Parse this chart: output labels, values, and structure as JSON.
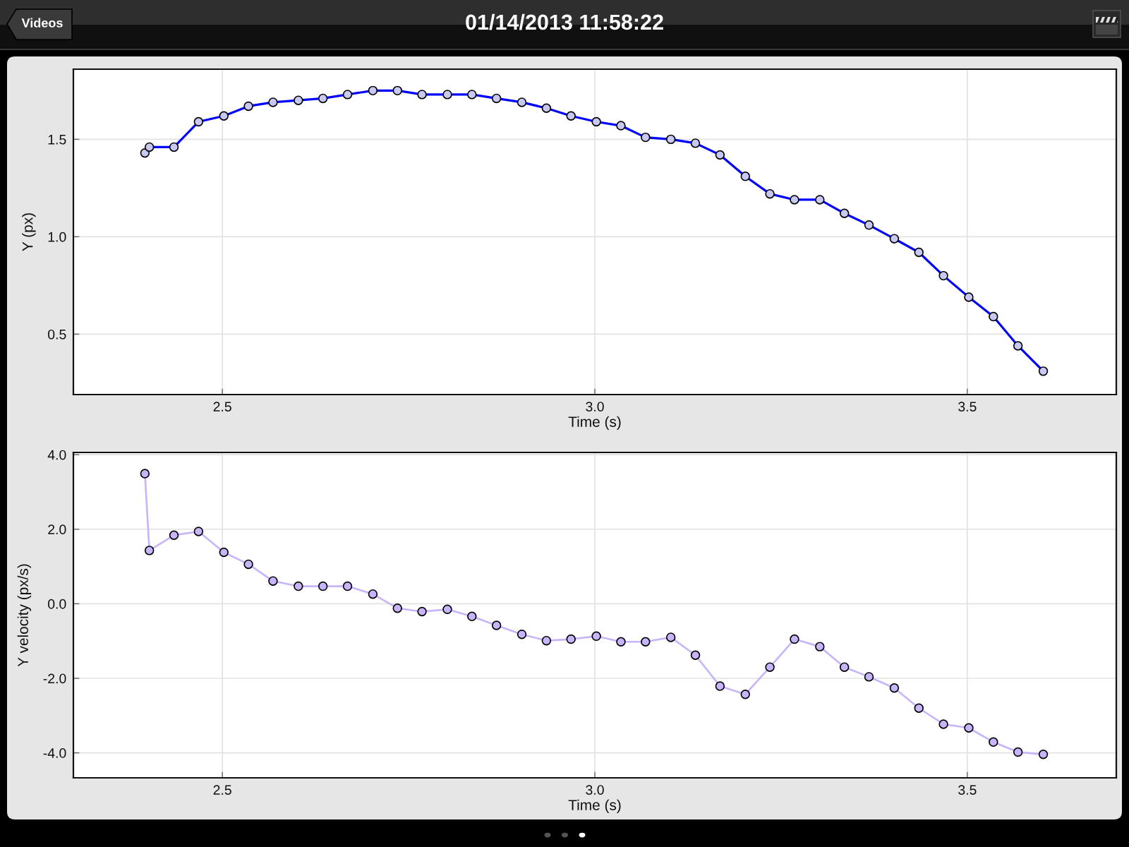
{
  "chart_data": [
    {
      "type": "line",
      "title": "01/14/2013 11:58:22",
      "annotations": [
        "Videos"
      ],
      "xlabel": "Time (s)",
      "ylabel": "Y (px)",
      "x": [
        2.396,
        2.402,
        2.435,
        2.468,
        2.502,
        2.535,
        2.568,
        2.602,
        2.635,
        2.668,
        2.702,
        2.735,
        2.768,
        2.802,
        2.835,
        2.868,
        2.902,
        2.935,
        2.968,
        3.002,
        3.035,
        3.068,
        3.102,
        3.135,
        3.168,
        3.202,
        3.235,
        3.268,
        3.302,
        3.335,
        3.368,
        3.402,
        3.435,
        3.468,
        3.502,
        3.535,
        3.568,
        3.602
      ],
      "series": [
        {
          "color": "#0000ff",
          "colors": [
            "#c8c8f4",
            "#c8c8f4",
            "#c8c8f4",
            "#c8c8f4",
            "#c8c8f4",
            "#c8c8f4",
            "#c8c8f4",
            "#c8c8f4",
            "#c8c8f4",
            "#c8c8f4",
            "#c8c8f4",
            "#c8c8f4",
            "#c8c8f4",
            "#c8c8f4",
            "#c8c8f4",
            "#c8c8f4",
            "#c8c8f4",
            "#c8c8f4",
            "#c8c8f4",
            "#c8c8f4",
            "#c8c8f4",
            "#c8c8f4",
            "#c8c8f4",
            "#c8c8f4",
            "#c8c8f4",
            "#c8c8f4",
            "#c8c8f4",
            "#c8c8f4",
            "#c8c8f4",
            "#c8c8f4",
            "#c8c8f4",
            "#c8c8f4",
            "#c8c8f4",
            "#c8c8f4",
            "#c8c8f4",
            "#c8c8f4",
            "#c8c8f4",
            "#c8c8f4"
          ],
          "values": [
            1.43,
            1.46,
            1.46,
            1.59,
            1.62,
            1.67,
            1.69,
            1.7,
            1.71,
            1.73,
            1.75,
            1.75,
            1.73,
            1.73,
            1.73,
            1.71,
            1.69,
            1.66,
            1.62,
            1.59,
            1.57,
            1.51,
            1.5,
            1.48,
            1.42,
            1.31,
            1.22,
            1.19,
            1.19,
            1.12,
            1.06,
            0.99,
            0.92,
            0.8,
            0.69,
            0.59,
            0.44,
            0.31
          ]
        }
      ],
      "xlim": [
        2.3,
        3.7
      ],
      "ylim": [
        0.19,
        1.86
      ],
      "xticks": [
        {
          "value": 2.5,
          "label": "2.5"
        },
        {
          "value": 3.0,
          "label": "3.0"
        },
        {
          "value": 3.5,
          "label": "3.5"
        }
      ],
      "yticks": [
        {
          "value": 0.5,
          "label": "0.5"
        },
        {
          "value": 1.0,
          "label": "1.0"
        },
        {
          "value": 1.5,
          "label": "1.5"
        }
      ],
      "grid": true,
      "marker": "circle",
      "line_style": "solid"
    },
    {
      "type": "line",
      "xlabel": "Time (s)",
      "ylabel": "Y velocity (px/s)",
      "x": [
        2.396,
        2.402,
        2.435,
        2.468,
        2.502,
        2.535,
        2.568,
        2.602,
        2.635,
        2.668,
        2.702,
        2.735,
        2.768,
        2.802,
        2.835,
        2.868,
        2.902,
        2.935,
        2.968,
        3.002,
        3.035,
        3.068,
        3.102,
        3.135,
        3.168,
        3.202,
        3.235,
        3.268,
        3.302,
        3.335,
        3.368,
        3.402,
        3.435,
        3.468,
        3.502,
        3.535,
        3.568,
        3.602
      ],
      "series": [
        {
          "color": "#c8b4fa",
          "colors": [
            "#c8b4fa",
            "#c8b4fa",
            "#c8b4fa",
            "#c8b4fa",
            "#c8b4fa",
            "#c8b4fa",
            "#c8b4fa",
            "#c8b4fa",
            "#c8b4fa",
            "#c8b4fa",
            "#c8b4fa",
            "#c8b4fa",
            "#c8b4fa",
            "#c8b4fa",
            "#c8b4fa",
            "#c8b4fa",
            "#c8b4fa",
            "#c8b4fa",
            "#c8b4fa",
            "#c8b4fa",
            "#c8b4fa",
            "#c8b4fa",
            "#c8b4fa",
            "#c8b4fa",
            "#c8b4fa",
            "#c8b4fa",
            "#c8b4fa",
            "#c8b4fa",
            "#c8b4fa",
            "#c8b4fa",
            "#c8b4fa",
            "#c8b4fa",
            "#c8b4fa",
            "#c8b4fa",
            "#c8b4fa",
            "#c8b4fa",
            "#c8b4fa",
            "#c8b4fa"
          ],
          "values": [
            3.49,
            1.43,
            1.84,
            1.94,
            1.38,
            1.06,
            0.61,
            0.47,
            0.47,
            0.47,
            0.26,
            -0.12,
            -0.21,
            -0.15,
            -0.34,
            -0.58,
            -0.82,
            -0.99,
            -0.95,
            -0.87,
            -1.02,
            -1.02,
            -0.9,
            -1.38,
            -2.21,
            -2.43,
            -1.7,
            -0.95,
            -1.15,
            -1.7,
            -1.96,
            -2.26,
            -2.8,
            -3.23,
            -3.33,
            -3.71,
            -3.98,
            -4.04
          ]
        }
      ],
      "xlim": [
        2.3,
        3.7
      ],
      "ylim": [
        -4.67,
        4.06
      ],
      "xticks": [
        {
          "value": 2.5,
          "label": "2.5"
        },
        {
          "value": 3.0,
          "label": "3.0"
        },
        {
          "value": 3.5,
          "label": "3.5"
        }
      ],
      "yticks": [
        {
          "value": -4.0,
          "label": "-4.0"
        },
        {
          "value": -2.0,
          "label": "-2.0"
        },
        {
          "value": 0.0,
          "label": "0.0"
        },
        {
          "value": 2.0,
          "label": "2.0"
        },
        {
          "value": 4.0,
          "label": "4.0"
        }
      ],
      "grid": true,
      "marker": "circle",
      "line_style": "solid"
    }
  ]
}
